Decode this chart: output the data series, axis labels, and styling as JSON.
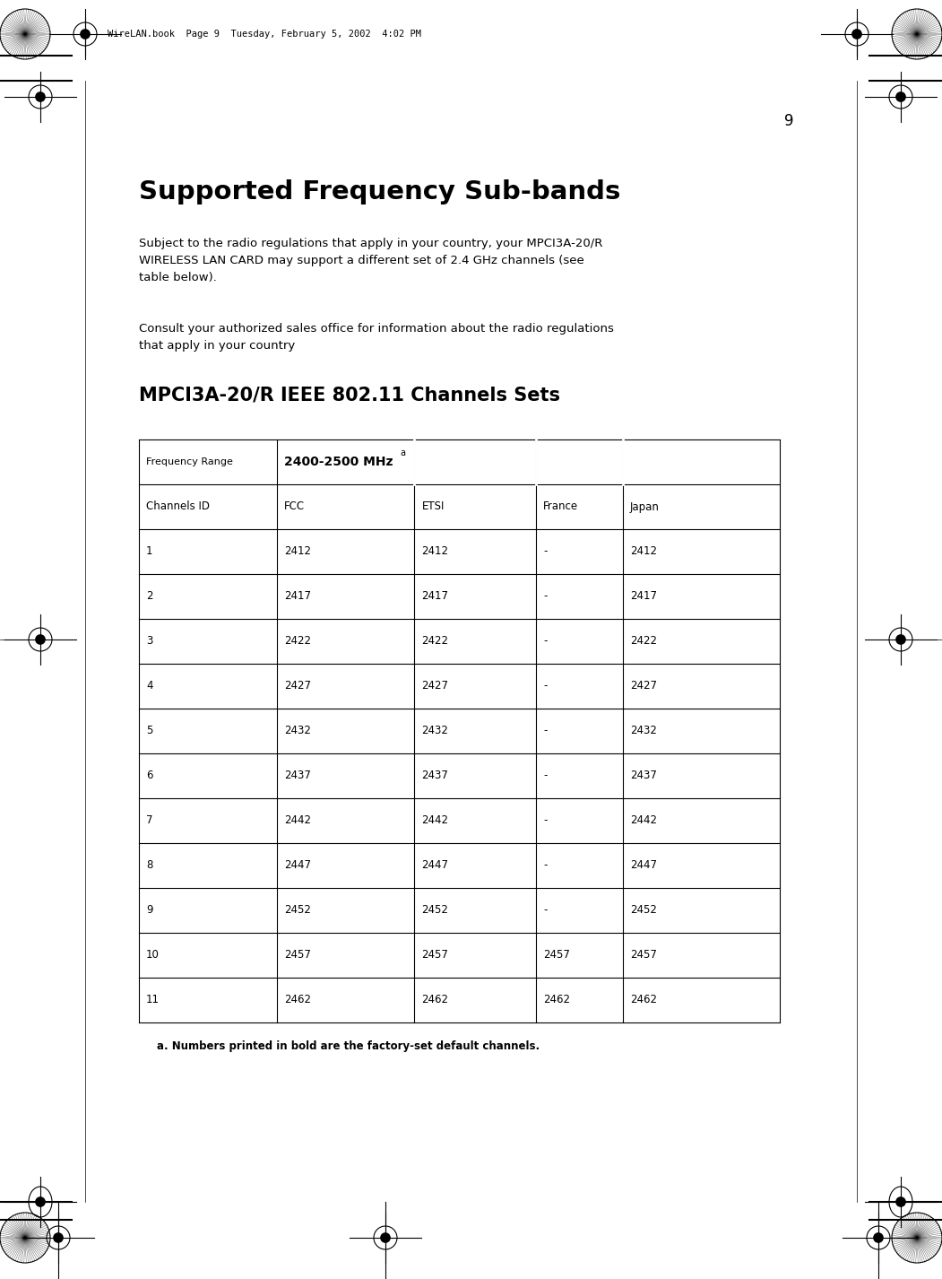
{
  "page_number": "9",
  "header_text": "WireLAN.book  Page 9  Tuesday, February 5, 2002  4:02 PM",
  "title": "Supported Frequency Sub-bands",
  "body_text1": "Subject to the radio regulations that apply in your country, your MPCI3A-20/R\nWIRELESS LAN CARD may support a different set of 2.4 GHz channels (see\ntable below).",
  "body_text2": "Consult your authorized sales office for information about the radio regulations\nthat apply in your country",
  "table_title": "MPCI3A-20/R IEEE 802.11 Channels Sets",
  "freq_range_label": "Frequency Range",
  "freq_range_value": "2400-2500 MHz",
  "freq_range_superscript": "a",
  "col_headers": [
    "Channels ID",
    "FCC",
    "ETSI",
    "France",
    "Japan"
  ],
  "table_data": [
    [
      "1",
      "2412",
      "2412",
      "-",
      "2412"
    ],
    [
      "2",
      "2417",
      "2417",
      "-",
      "2417"
    ],
    [
      "3",
      "2422",
      "2422",
      "-",
      "2422"
    ],
    [
      "4",
      "2427",
      "2427",
      "-",
      "2427"
    ],
    [
      "5",
      "2432",
      "2432",
      "-",
      "2432"
    ],
    [
      "6",
      "2437",
      "2437",
      "-",
      "2437"
    ],
    [
      "7",
      "2442",
      "2442",
      "-",
      "2442"
    ],
    [
      "8",
      "2447",
      "2447",
      "-",
      "2447"
    ],
    [
      "9",
      "2452",
      "2452",
      "-",
      "2452"
    ],
    [
      "10",
      "2457",
      "2457",
      "2457",
      "2457"
    ],
    [
      "11",
      "2462",
      "2462",
      "2462",
      "2462"
    ]
  ],
  "footnote": "a. Numbers printed in bold are the factory-set default channels.",
  "bg_color": "#ffffff",
  "text_color": "#000000"
}
